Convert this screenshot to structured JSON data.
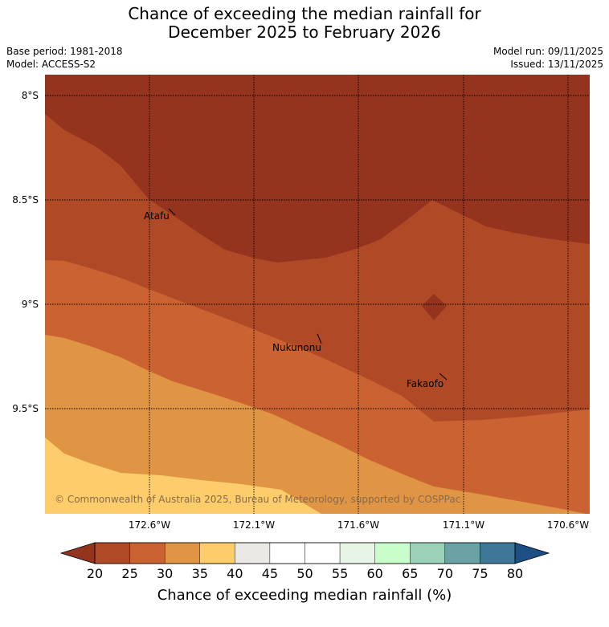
{
  "header": {
    "title_line1": "Chance of exceeding the median rainfall for",
    "title_line2": "December 2025 to February 2026",
    "base_period": "Base period: 1981-2018",
    "model": "Model: ACCESS-S2",
    "model_run": "Model run: 09/11/2025",
    "issued": "Issued: 13/11/2025"
  },
  "map": {
    "lat_labels": [
      "8°S",
      "8.5°S",
      "9°S",
      "9.5°S"
    ],
    "lon_labels": [
      "172.6°W",
      "172.1°W",
      "171.6°W",
      "171.1°W",
      "170.6°W"
    ],
    "places": [
      {
        "name": "Atafu"
      },
      {
        "name": "Nukunonu"
      },
      {
        "name": "Fakaofo"
      }
    ],
    "copyright": "© Commonwealth of Australia 2025, Bureau of Meteorology, supported by COSPPac"
  },
  "colorbar": {
    "ticks": [
      "20",
      "25",
      "30",
      "35",
      "40",
      "45",
      "50",
      "55",
      "60",
      "65",
      "70",
      "75",
      "80"
    ],
    "label": "Chance of exceeding median rainfall (%)",
    "colors": [
      "#b04a26",
      "#ca6232",
      "#e09545",
      "#fdcd6c",
      "#ebe9e5",
      "#ffffff",
      "#ffffff",
      "#e6f5e6",
      "#c9fdc9",
      "#9bd1b7",
      "#6aa2a6",
      "#3e7698"
    ],
    "under_color": "#94331e",
    "over_color": "#1d4f85"
  }
}
